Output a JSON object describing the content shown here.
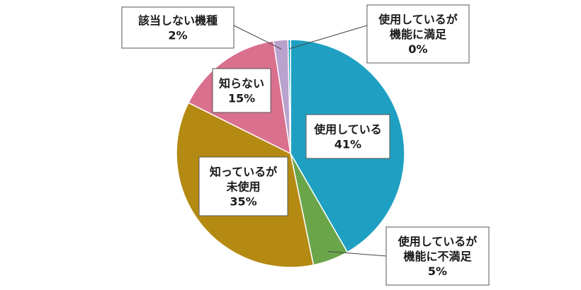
{
  "chart_data": {
    "type": "pie",
    "title": "",
    "start": "top",
    "direction": "clockwise",
    "slices": [
      {
        "label_lines": [
          "使用している"
        ],
        "pct_label": "41%",
        "value": 41,
        "color": "#1fa0c2"
      },
      {
        "label_lines": [
          "使用しているが",
          "機能に不満足"
        ],
        "pct_label": "5%",
        "value": 5,
        "color": "#6aa54a"
      },
      {
        "label_lines": [
          "知っているが",
          "未使用"
        ],
        "pct_label": "35%",
        "value": 35,
        "color": "#b58a13"
      },
      {
        "label_lines": [
          "知らない"
        ],
        "pct_label": "15%",
        "value": 15,
        "color": "#d9708e"
      },
      {
        "label_lines": [
          "該当しない機種"
        ],
        "pct_label": "2%",
        "value": 2,
        "color": "#b9a2cd"
      },
      {
        "label_lines": [
          "使用しているが",
          "機能に満足"
        ],
        "pct_label": "0%",
        "value": 0.35,
        "color": "#1fa0c2"
      }
    ]
  }
}
